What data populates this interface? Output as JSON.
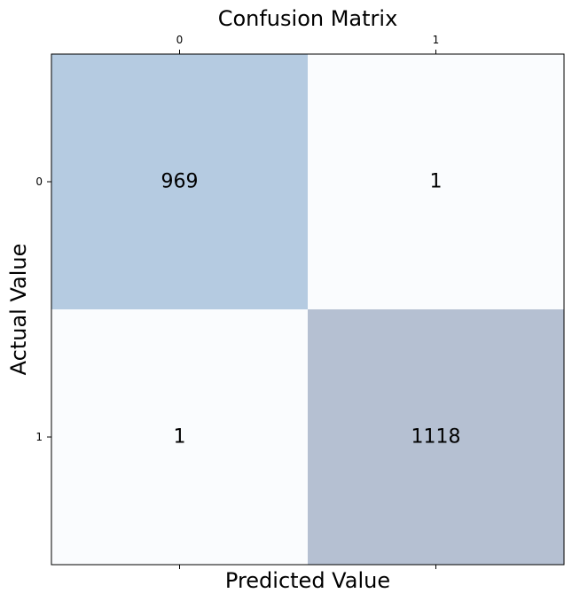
{
  "chart_data": {
    "type": "heatmap",
    "title": "Confusion Matrix",
    "xlabel": "Predicted Value",
    "ylabel": "Actual Value",
    "x_categories": [
      "0",
      "1"
    ],
    "y_categories": [
      "0",
      "1"
    ],
    "values": [
      [
        969,
        1
      ],
      [
        1,
        1118
      ]
    ],
    "cell_colors": [
      [
        "#b5cbe1",
        "#fafcfe"
      ],
      [
        "#fafcfe",
        "#b5c0d2"
      ]
    ],
    "colormap": "Blues",
    "x_ticks_position": "top",
    "grid": false,
    "legend": "none"
  }
}
